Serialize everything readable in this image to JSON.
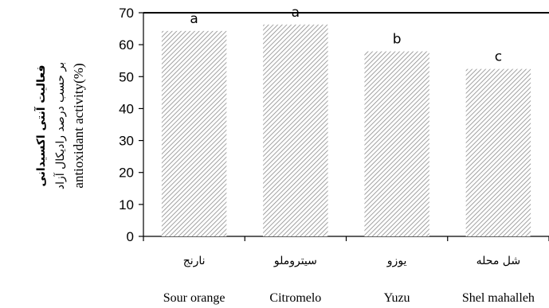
{
  "chart_data": {
    "type": "bar",
    "categories_fa": [
      "نارنج",
      "سیتروملو",
      "یوزو",
      "شل محله"
    ],
    "categories_en": [
      "Sour orange",
      "Citromelo",
      "Yuzu",
      "Shel mahalleh"
    ],
    "values": [
      64.3,
      66.3,
      57.9,
      52.4
    ],
    "data_labels": [
      "a",
      "a",
      "b",
      "c"
    ],
    "ylim": [
      0,
      70
    ],
    "yticks": [
      "0",
      "10",
      "20",
      "30",
      "40",
      "50",
      "60",
      "70"
    ],
    "ylabel_fa_line1": "فعالیت آنتی اکسیدانی",
    "ylabel_fa_line2": "بر حسب درصد رادیکال آزاد",
    "ylabel_en": "antioxidant activity(%)",
    "grid": false,
    "bar_fill": "hatched"
  }
}
